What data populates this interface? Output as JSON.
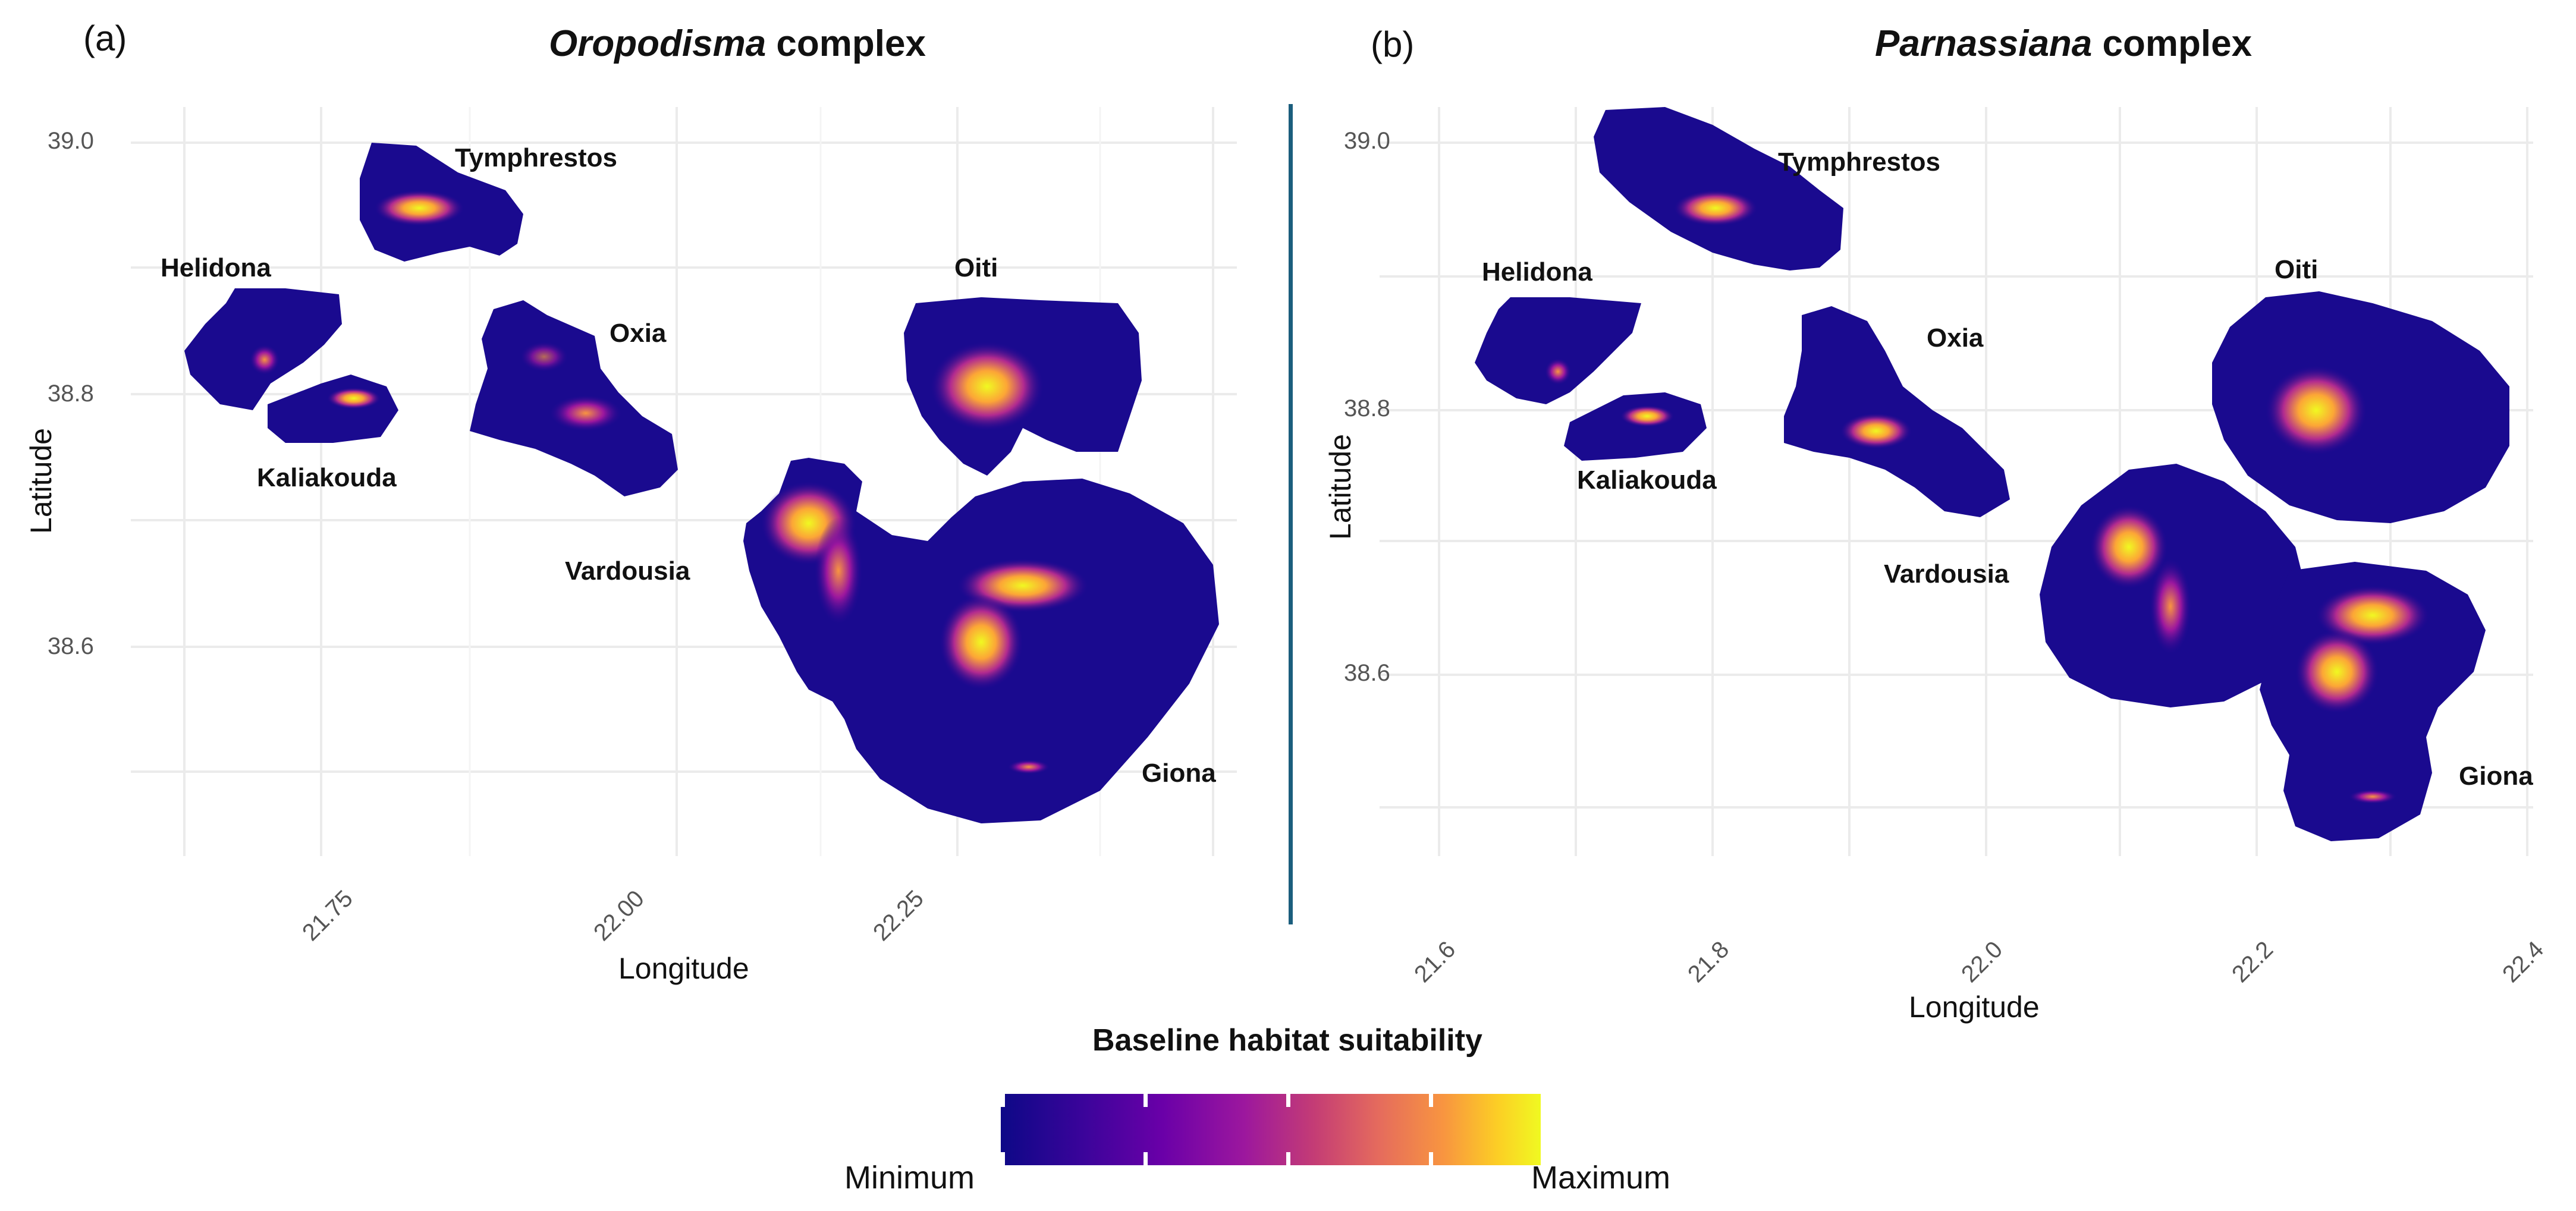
{
  "legend": {
    "title": "Baseline habitat suitability",
    "min_label": "Minimum",
    "max_label": "Maximum",
    "colormap": [
      "#0d0887",
      "#6a00a8",
      "#b12a90",
      "#e16462",
      "#fca636",
      "#f0f921"
    ]
  },
  "panel_a": {
    "letter": "(a)",
    "title_italic": "Oropodisma",
    "title_rest": " complex",
    "xlabel": "Longitude",
    "ylabel": "Latitude",
    "xticks": [
      "21.75",
      "22.00",
      "22.25"
    ],
    "yticks": [
      "39.0",
      "38.8",
      "38.6"
    ],
    "regions": [
      "Tymphrestos",
      "Helidona",
      "Oxia",
      "Kaliakouda",
      "Oiti",
      "Vardousia",
      "Giona"
    ]
  },
  "panel_b": {
    "letter": "(b)",
    "title_italic": "Parnassiana",
    "title_rest": " complex",
    "xlabel": "Longitude",
    "ylabel": "Latitude",
    "xticks": [
      "21.6",
      "21.8",
      "22.0",
      "22.2",
      "22.4"
    ],
    "yticks": [
      "39.0",
      "38.8",
      "38.6"
    ],
    "regions": [
      "Tymphrestos",
      "Helidona",
      "Oxia",
      "Kaliakouda",
      "Oiti",
      "Vardousia",
      "Giona"
    ]
  },
  "colors": {
    "background_low": "#0d0887",
    "mid": "#9c179e",
    "high": "#f89540",
    "peak": "#f0f921",
    "divider": "#1b5e7d",
    "grid": "#ebebeb"
  }
}
